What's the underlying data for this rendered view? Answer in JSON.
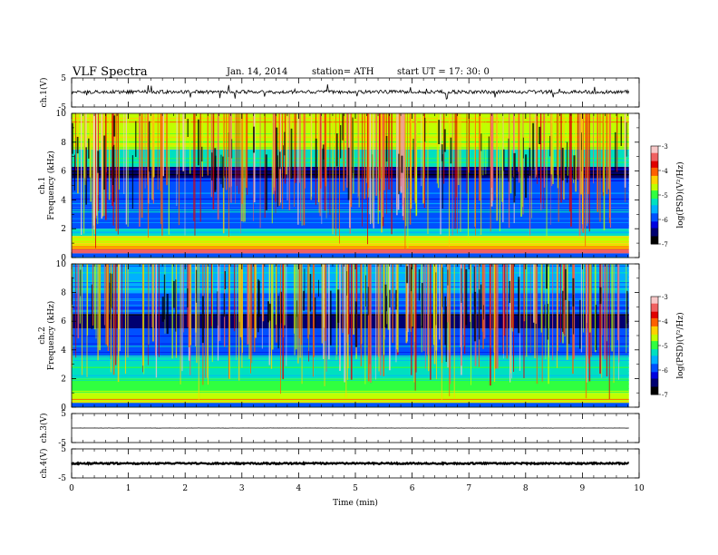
{
  "header": {
    "title": "VLF  Spectra",
    "date": "Jan.  14,  2014",
    "station": "station= ATH",
    "start": "start  UT  =     17:  30:  0"
  },
  "colors": {
    "scale": [
      "#000000",
      "#000070",
      "#0000e0",
      "#0050ff",
      "#00b0ff",
      "#00e0c0",
      "#30ff40",
      "#c0ff00",
      "#ffd000",
      "#ff6000",
      "#e00000",
      "#f06060",
      "#f8c8c8"
    ]
  },
  "chart_data": [
    {
      "type": "line",
      "panel": "ch1",
      "ylabel": "ch.1(V)",
      "ylim": [
        -5,
        5
      ],
      "yticks": [
        "5",
        "-5"
      ],
      "baseline": 0.2,
      "fluctuation": 0.6,
      "spike_max": 2.6
    },
    {
      "type": "heatmap",
      "panel": "ch1-spectrogram",
      "ylabel": "ch.1\nFrequency  (kHz)",
      "ylim": [
        0,
        10
      ],
      "yticks": [
        "0",
        "2",
        "4",
        "6",
        "8",
        "10"
      ],
      "colorbar": {
        "label": "log(PSD)(V²/Hz)",
        "ticks": [
          "-3",
          "-4",
          "-5",
          "-6",
          "-7"
        ],
        "range": [
          -7,
          -3
        ]
      },
      "bands": [
        {
          "f": [
            0.0,
            0.3
          ],
          "level": 0.3
        },
        {
          "f": [
            0.3,
            0.6
          ],
          "level": 0.88
        },
        {
          "f": [
            0.6,
            1.0
          ],
          "level": 0.65
        },
        {
          "f": [
            1.0,
            1.5
          ],
          "level": 0.55
        },
        {
          "f": [
            1.5,
            2.0
          ],
          "level": 0.42
        },
        {
          "f": [
            2.0,
            3.5
          ],
          "level": 0.28
        },
        {
          "f": [
            3.5,
            5.5
          ],
          "level": 0.25
        },
        {
          "f": [
            5.5,
            6.3
          ],
          "level": 0.12
        },
        {
          "f": [
            6.3,
            7.5
          ],
          "level": 0.45
        },
        {
          "f": [
            7.5,
            10.0
          ],
          "level": 0.6
        }
      ]
    },
    {
      "type": "heatmap",
      "panel": "ch2-spectrogram",
      "ylabel": "ch.2\nFrequency  (kHz)",
      "ylim": [
        0,
        10
      ],
      "yticks": [
        "0",
        "2",
        "4",
        "6",
        "8",
        "10"
      ],
      "colorbar": {
        "label": "log(PSD)(V²/Hz)",
        "ticks": [
          "-3",
          "-4",
          "-5",
          "-6",
          "-7"
        ],
        "range": [
          -7,
          -3
        ]
      },
      "bands": [
        {
          "f": [
            0.0,
            0.3
          ],
          "level": 0.3
        },
        {
          "f": [
            0.3,
            1.0
          ],
          "level": 0.6
        },
        {
          "f": [
            1.0,
            2.0
          ],
          "level": 0.5
        },
        {
          "f": [
            2.0,
            3.5
          ],
          "level": 0.42
        },
        {
          "f": [
            3.5,
            5.5
          ],
          "level": 0.3
        },
        {
          "f": [
            5.5,
            6.5
          ],
          "level": 0.12
        },
        {
          "f": [
            6.5,
            8.0
          ],
          "level": 0.3
        },
        {
          "f": [
            8.0,
            10.0
          ],
          "level": 0.35
        }
      ]
    },
    {
      "type": "line",
      "panel": "ch3",
      "ylabel": "ch.3(V)",
      "ylim": [
        -5,
        5
      ],
      "yticks": [
        "5",
        "-5"
      ],
      "baseline": 0.0,
      "fluctuation": 0.02,
      "spike_max": 0
    },
    {
      "type": "line",
      "panel": "ch4",
      "ylabel": "ch.4(V)",
      "ylim": [
        -5,
        5
      ],
      "yticks": [
        "5",
        "-5"
      ],
      "baseline": 0.0,
      "fluctuation": 0.25,
      "spike_max": 0
    }
  ],
  "x_axis": {
    "xlabel": "Time  (min)",
    "xlim": [
      0,
      10
    ],
    "data_end": 9.82,
    "ticks": [
      "0",
      "1",
      "2",
      "3",
      "4",
      "5",
      "6",
      "7",
      "8",
      "9",
      "10"
    ]
  }
}
